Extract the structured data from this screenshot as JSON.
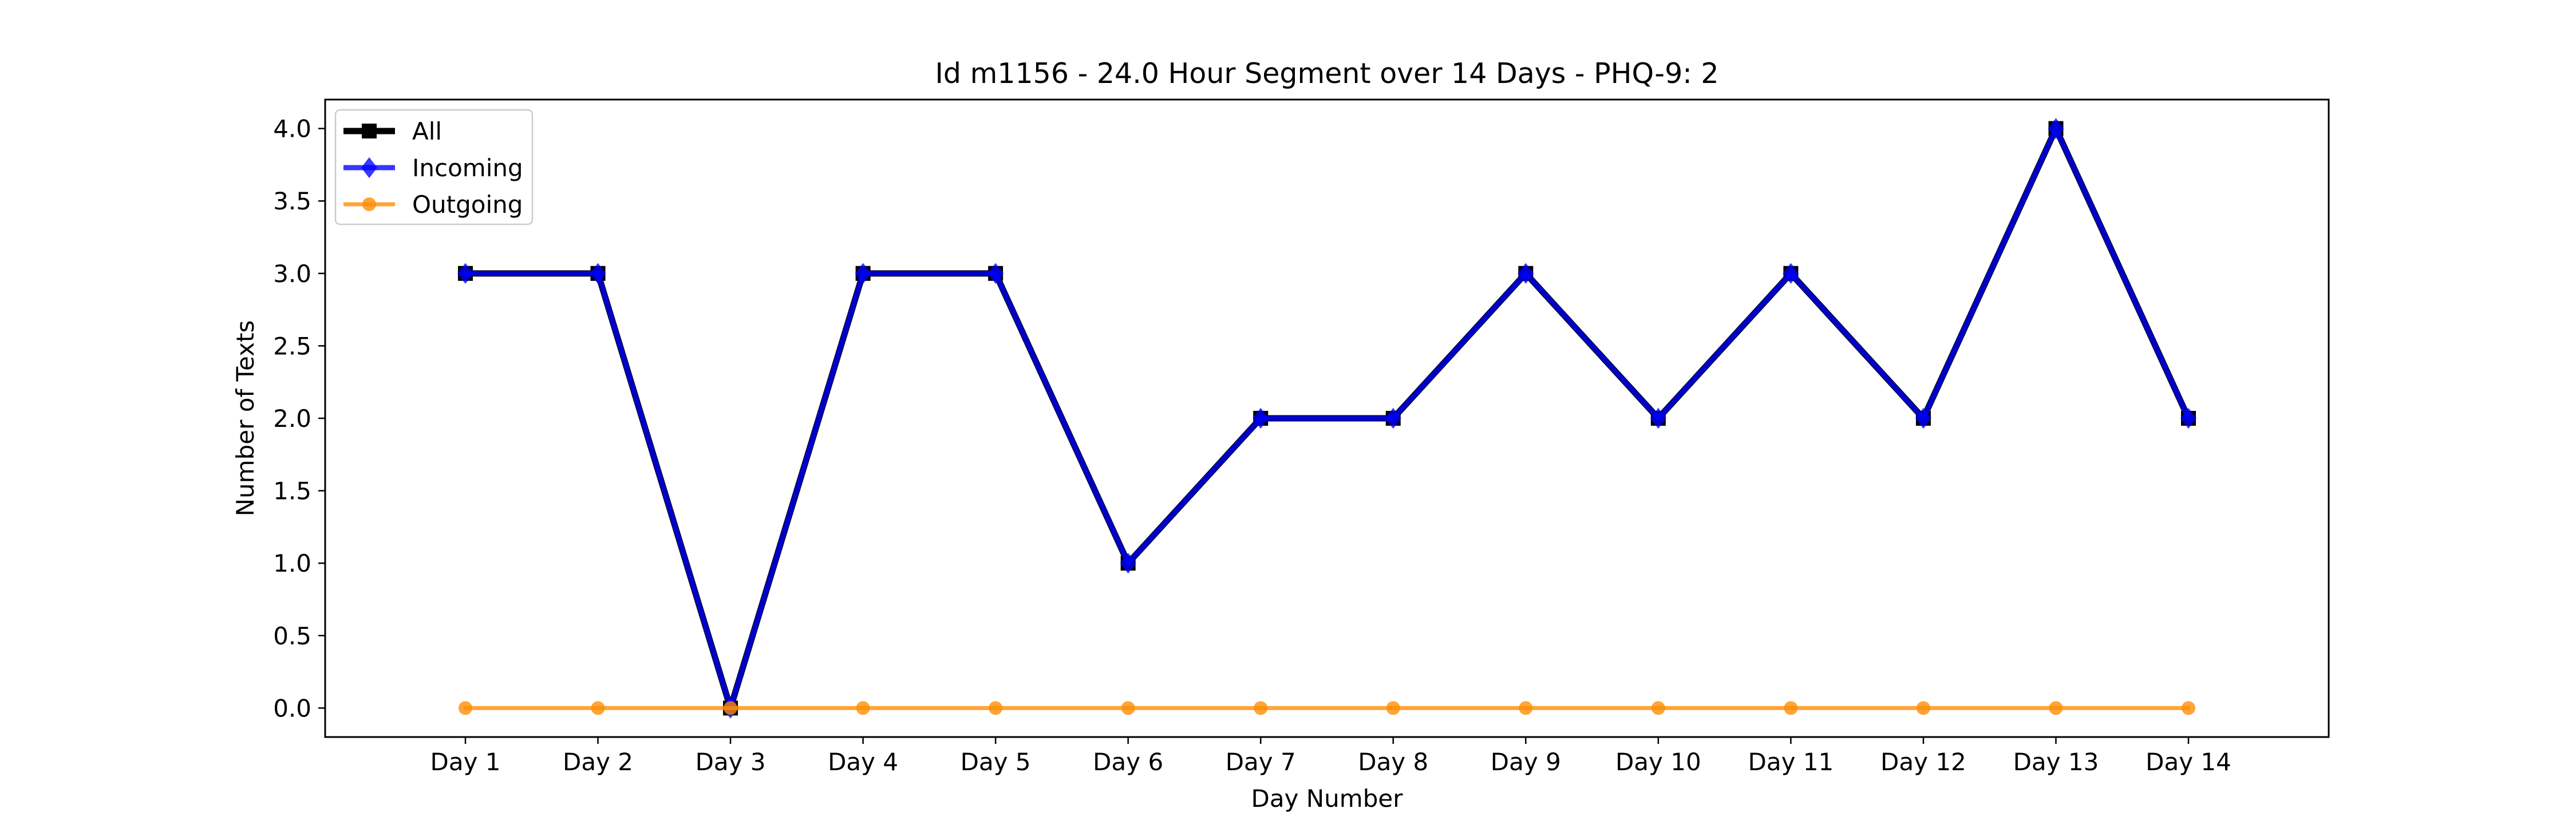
{
  "chart_data": {
    "type": "line",
    "title": "Id m1156 - 24.0 Hour Segment over 14 Days - PHQ-9: 2",
    "xlabel": "Day Number",
    "ylabel": "Number of Texts",
    "categories": [
      "Day 1",
      "Day 2",
      "Day 3",
      "Day 4",
      "Day 5",
      "Day 6",
      "Day 7",
      "Day 8",
      "Day 9",
      "Day 10",
      "Day 11",
      "Day 12",
      "Day 13",
      "Day 14"
    ],
    "ylim": [
      -0.2,
      4.2
    ],
    "yticks": [
      0.0,
      0.5,
      1.0,
      1.5,
      2.0,
      2.5,
      3.0,
      3.5,
      4.0
    ],
    "ytick_labels": [
      "0.0",
      "0.5",
      "1.0",
      "1.5",
      "2.0",
      "2.5",
      "3.0",
      "3.5",
      "4.0"
    ],
    "grid": false,
    "legend_position": "top-left",
    "series": [
      {
        "name": "All",
        "values": [
          3,
          3,
          0,
          3,
          3,
          1,
          2,
          2,
          3,
          2,
          3,
          2,
          4,
          2
        ],
        "color": "#000000",
        "marker": "square"
      },
      {
        "name": "Incoming",
        "values": [
          3,
          3,
          0,
          3,
          3,
          1,
          2,
          2,
          3,
          2,
          3,
          2,
          4,
          2
        ],
        "color": "#0000ff",
        "marker": "diamond"
      },
      {
        "name": "Outgoing",
        "values": [
          0,
          0,
          0,
          0,
          0,
          0,
          0,
          0,
          0,
          0,
          0,
          0,
          0,
          0
        ],
        "color": "#ff8c00",
        "marker": "circle"
      }
    ]
  }
}
